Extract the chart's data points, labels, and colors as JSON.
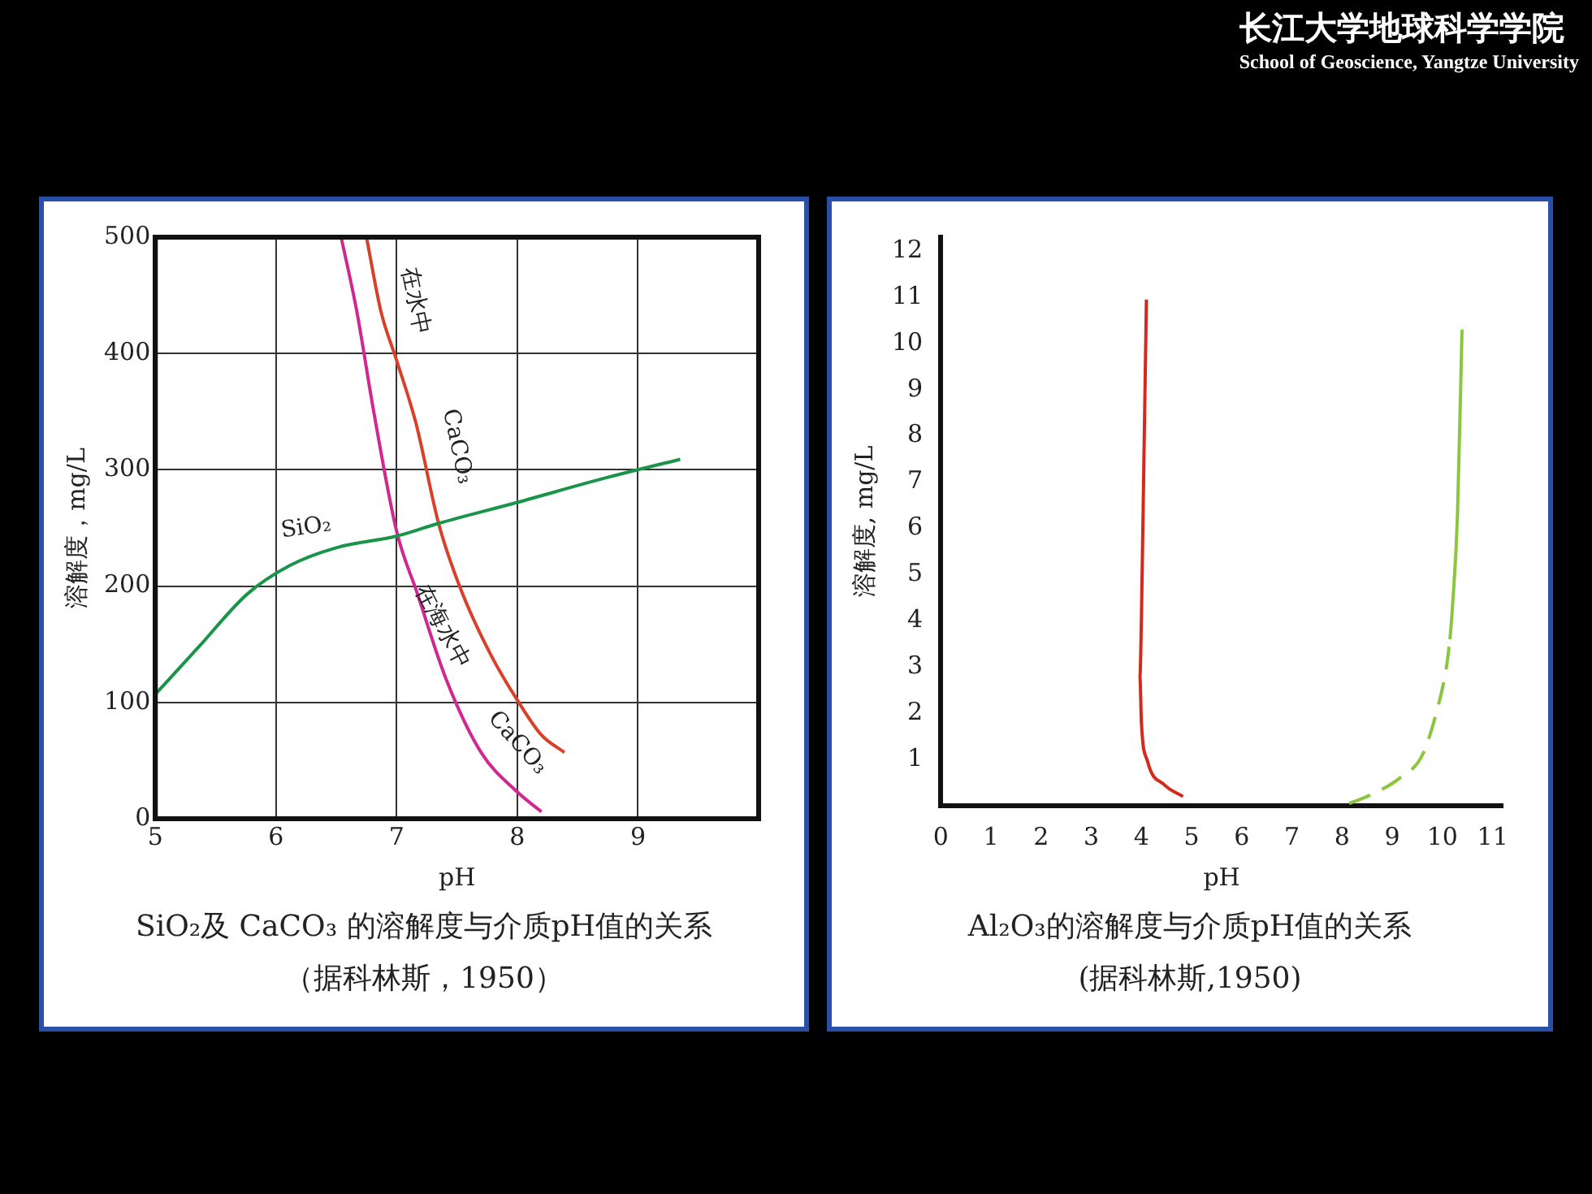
{
  "chart_data": [
    {
      "type": "other",
      "annotations": [
        "长江大学地球科学学院",
        "School of Geoscience, Yangtze University"
      ]
    },
    {
      "type": "line",
      "title": "SiO₂及 CaCO₃ 的溶解度与介质pH值的关系",
      "xlabel": "pH",
      "ylabel": "溶解度，mg/L",
      "xlim": [
        5,
        10
      ],
      "xticks": [
        5,
        6,
        7,
        8,
        9
      ],
      "ylim": [
        0,
        500
      ],
      "yticks": [
        0,
        100,
        200,
        300,
        400,
        500
      ],
      "grid": true,
      "legend": false,
      "series": [
        {
          "color": "#1a9448",
          "x": [
            5,
            5.37,
            5.76,
            6.12,
            6.5,
            7,
            7.35,
            8,
            8.73,
            9.35
          ],
          "values": [
            107,
            149,
            193,
            218,
            233,
            243,
            254,
            272,
            293,
            309
          ]
        },
        {
          "color": "#d8402a",
          "x": [
            6.75,
            6.87,
            7,
            7.16,
            7.35,
            7.54,
            7.78,
            8,
            8.2,
            8.39
          ],
          "values": [
            500,
            436,
            394,
            340,
            253,
            195,
            141,
            102,
            72,
            57
          ]
        },
        {
          "color": "#d0288f",
          "x": [
            6.54,
            6.67,
            6.81,
            7,
            7.17,
            7.41,
            7.7,
            8,
            8.2
          ],
          "values": [
            500,
            436,
            350,
            247,
            194,
            120,
            57,
            23,
            6
          ]
        }
      ],
      "annotations": [
        "SiO₂",
        "在水中",
        "CaCO₃",
        "在海水中",
        "CaCO₃",
        "（据科林斯，1950）"
      ]
    },
    {
      "type": "line",
      "title": "Al₂O₃的溶解度与介质pH值的关系",
      "xlabel": "pH",
      "ylabel": "溶解度, mg/L",
      "xlim": [
        0,
        11.2
      ],
      "xticks": [
        0,
        1,
        2,
        3,
        4,
        5,
        6,
        7,
        8,
        9,
        10,
        11
      ],
      "ylim": [
        0,
        12.3
      ],
      "yticks": [
        1,
        2,
        3,
        4,
        5,
        6,
        7,
        8,
        9,
        10,
        11,
        12
      ],
      "grid": false,
      "legend": false,
      "series": [
        {
          "color": "#d42a1e",
          "x": [
            4.1,
            4.05,
            4.0,
            3.97,
            4.0,
            4.12,
            4.46,
            4.83
          ],
          "values": [
            10.95,
            7.5,
            4.05,
            2.8,
            1.8,
            0.97,
            0.45,
            0.2
          ]
        },
        {
          "color": "#8cc63f",
          "line_style": "dashed",
          "x": [
            8.14,
            8.6,
            9.15,
            9.6,
            9.9,
            10.08,
            10.15
          ],
          "values": [
            0.05,
            0.25,
            0.6,
            1.1,
            2.1,
            3.0,
            3.6
          ]
        },
        {
          "color": "#8cc63f",
          "line_style": "solid",
          "x": [
            10.15,
            10.2,
            10.3,
            10.39
          ],
          "values": [
            3.6,
            4.3,
            6.3,
            10.3
          ]
        }
      ],
      "annotations": [
        "(据科林斯,1950)"
      ]
    }
  ]
}
